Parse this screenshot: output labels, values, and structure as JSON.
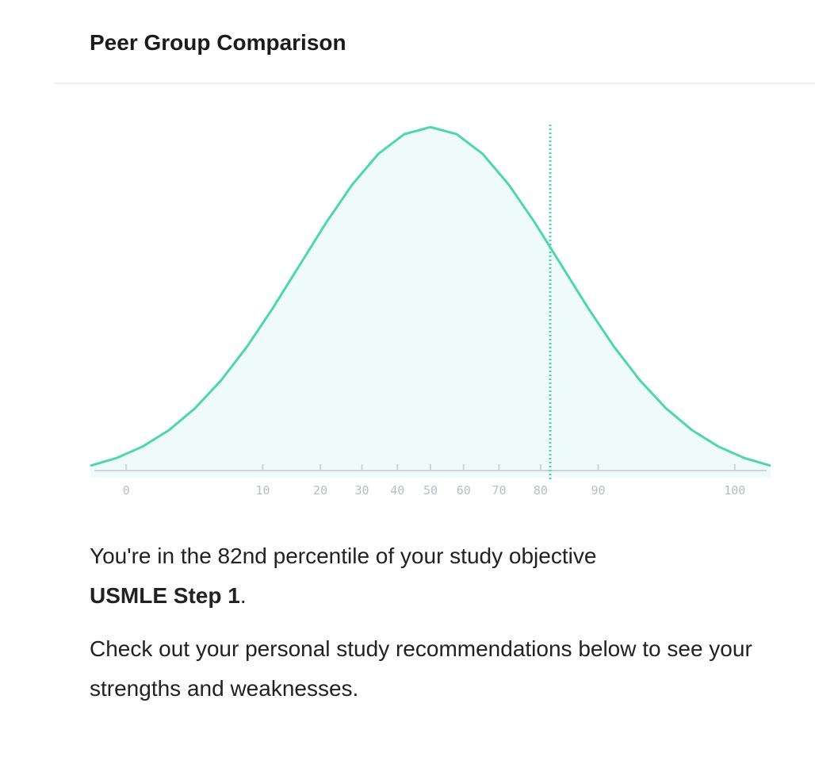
{
  "header": {
    "title": "Peer Group Comparison"
  },
  "chart_data": {
    "type": "area",
    "x": [
      -2.6,
      -2.4,
      -2.2,
      -2.0,
      -1.8,
      -1.6,
      -1.4,
      -1.2,
      -1.0,
      -0.8,
      -0.6,
      -0.4,
      -0.2,
      0,
      0.2,
      0.4,
      0.6,
      0.8,
      1.0,
      1.2,
      1.4,
      1.6,
      1.8,
      2.0,
      2.2,
      2.4,
      2.6
    ],
    "values": [
      0.0136,
      0.0224,
      0.0355,
      0.054,
      0.079,
      0.1109,
      0.1497,
      0.1942,
      0.242,
      0.2897,
      0.3332,
      0.3683,
      0.391,
      0.3989,
      0.391,
      0.3683,
      0.3332,
      0.2897,
      0.242,
      0.1942,
      0.1497,
      0.1109,
      0.079,
      0.054,
      0.0355,
      0.0224,
      0.0136
    ],
    "color": "#4fd6ae",
    "xlim": [
      -2.6,
      2.6
    ],
    "ylim": [
      0,
      0.4
    ],
    "xticks": [
      {
        "value": -2.326,
        "label": "0"
      },
      {
        "value": -1.282,
        "label": "10"
      },
      {
        "value": -0.842,
        "label": "20"
      },
      {
        "value": -0.524,
        "label": "30"
      },
      {
        "value": -0.253,
        "label": "40"
      },
      {
        "value": 0,
        "label": "50"
      },
      {
        "value": 0.253,
        "label": "60"
      },
      {
        "value": 0.524,
        "label": "70"
      },
      {
        "value": 0.842,
        "label": "80"
      },
      {
        "value": 1.282,
        "label": "90"
      },
      {
        "value": 2.326,
        "label": "100"
      }
    ],
    "marker_x": 0.915
  },
  "summary": {
    "line1": "You're in the 82nd percentile of your study objective",
    "objective": "USMLE Step 1",
    "end": ".",
    "line2": "Check out your personal study recommendations below to see your strengths and weaknesses."
  }
}
